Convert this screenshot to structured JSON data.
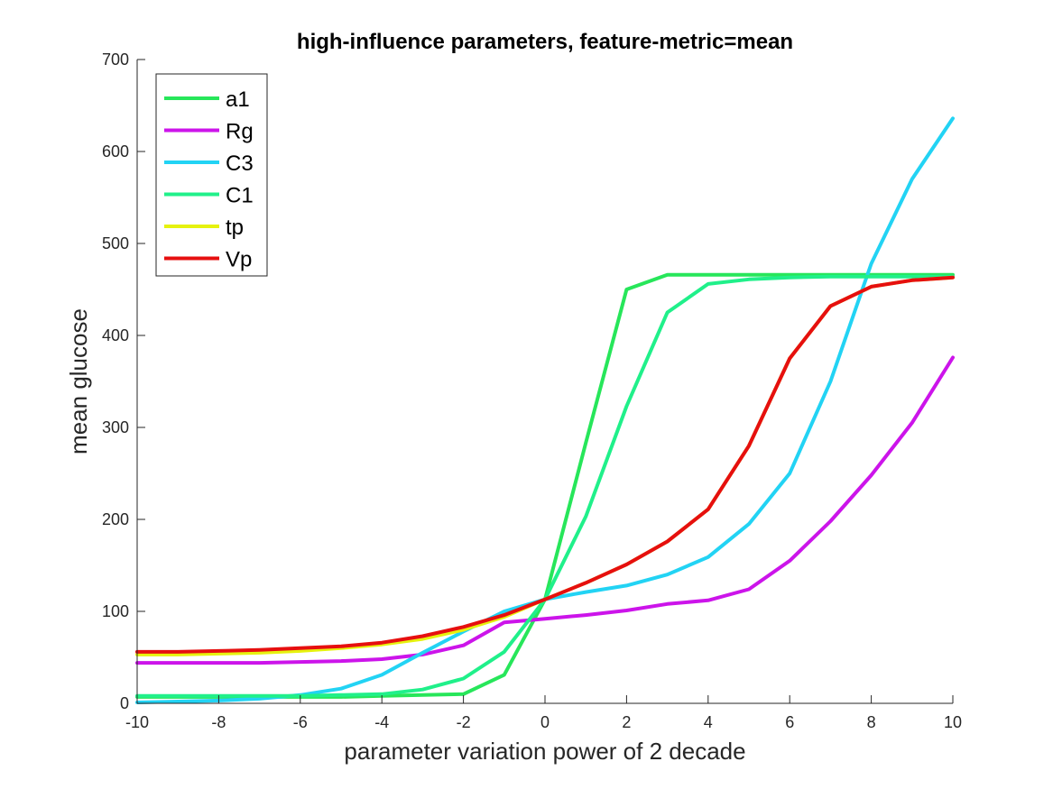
{
  "chart_data": {
    "type": "line",
    "title": "high-influence parameters, feature-metric=mean",
    "xlabel": "parameter variation power of 2 decade",
    "ylabel": "mean glucose",
    "xlim": [
      -10,
      10
    ],
    "ylim": [
      0,
      700
    ],
    "xticks": [
      -10,
      -8,
      -6,
      -4,
      -2,
      0,
      2,
      4,
      6,
      8,
      10
    ],
    "yticks": [
      0,
      100,
      200,
      300,
      400,
      500,
      600,
      700
    ],
    "grid": false,
    "legend_position": "top-left",
    "x": [
      -10,
      -9,
      -8,
      -7,
      -6,
      -5,
      -4,
      -3,
      -2,
      -1,
      0,
      1,
      2,
      3,
      4,
      5,
      6,
      7,
      8,
      9,
      10
    ],
    "series": [
      {
        "name": "a1",
        "color": "#27e65a",
        "values": [
          7,
          7,
          7,
          7,
          7,
          7,
          8,
          9,
          10,
          31,
          113,
          283,
          450,
          466,
          466,
          466,
          466,
          466,
          466,
          466,
          466
        ]
      },
      {
        "name": "Rg",
        "color": "#cc14ea",
        "values": [
          44,
          44,
          44,
          44,
          45,
          46,
          48,
          53,
          63,
          88,
          92,
          96,
          101,
          108,
          112,
          124,
          155,
          198,
          248,
          305,
          376
        ]
      },
      {
        "name": "C3",
        "color": "#22d3f4",
        "values": [
          1,
          2,
          3,
          5,
          9,
          16,
          31,
          55,
          78,
          100,
          113,
          121,
          128,
          140,
          159,
          195,
          250,
          350,
          478,
          570,
          636
        ]
      },
      {
        "name": "C1",
        "color": "#20f08a",
        "values": [
          8,
          8,
          8,
          8,
          8,
          9,
          10,
          15,
          27,
          56,
          113,
          203,
          323,
          425,
          456,
          461,
          463,
          464,
          464,
          464,
          464
        ]
      },
      {
        "name": "tp",
        "color": "#e6f20e",
        "values": [
          53,
          53,
          54,
          55,
          57,
          60,
          64,
          70,
          80,
          94,
          113,
          131,
          151,
          176,
          211,
          280,
          375,
          432,
          453,
          460,
          463
        ]
      },
      {
        "name": "Vp",
        "color": "#e60f0f",
        "values": [
          56,
          56,
          57,
          58,
          60,
          62,
          66,
          73,
          83,
          96,
          113,
          131,
          151,
          176,
          211,
          280,
          375,
          432,
          453,
          460,
          463
        ]
      }
    ]
  }
}
